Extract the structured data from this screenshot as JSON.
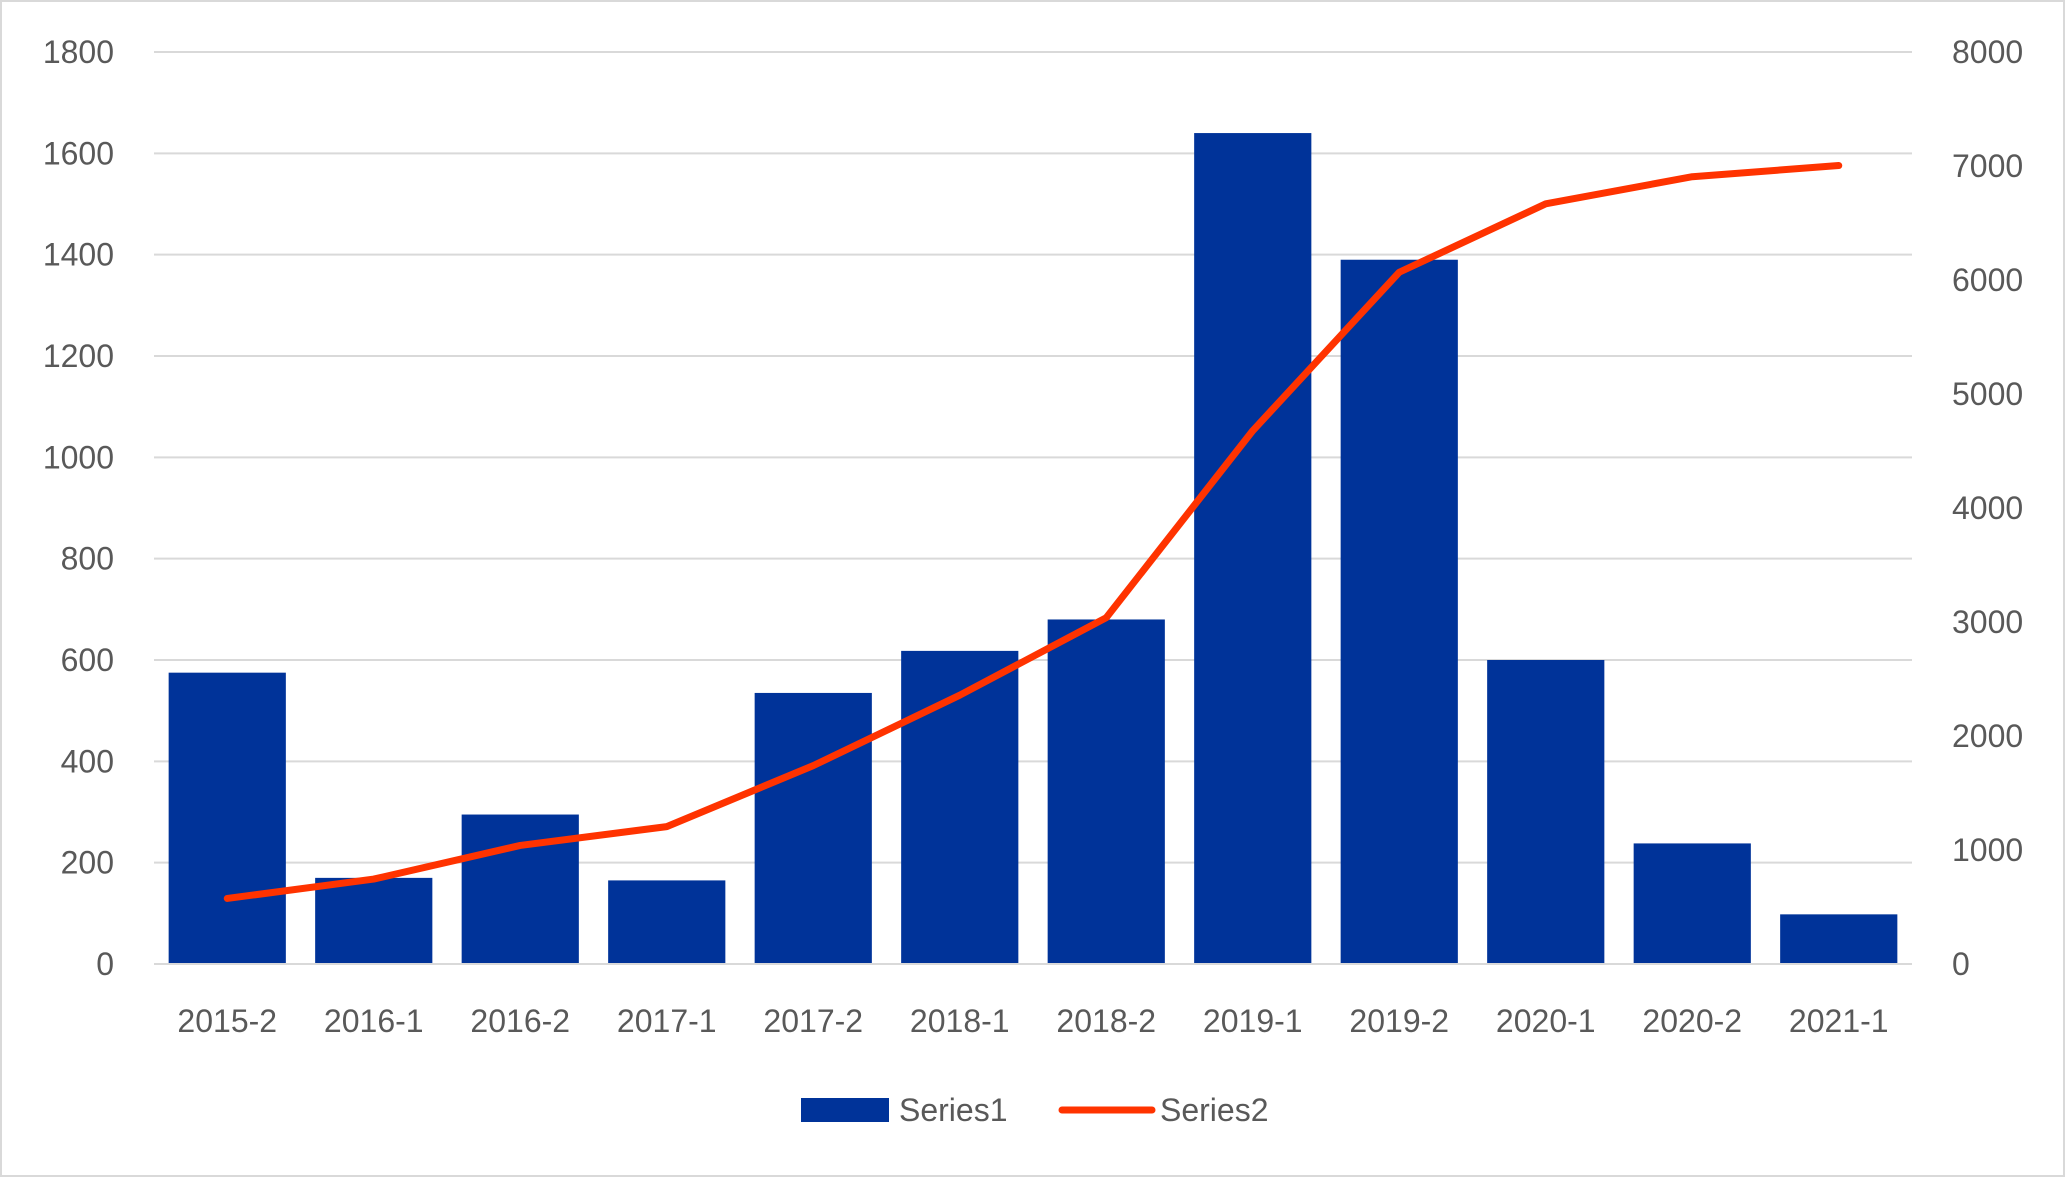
{
  "chart_data": {
    "type": "bar",
    "title": "",
    "xlabel": "",
    "ylabel": "",
    "categories": [
      "2015-2",
      "2016-1",
      "2016-2",
      "2017-1",
      "2017-2",
      "2018-1",
      "2018-2",
      "2019-1",
      "2019-2",
      "2020-1",
      "2020-2",
      "2021-1"
    ],
    "series": [
      {
        "name": "Series1",
        "type": "bar",
        "axis": "left",
        "color": "#003399",
        "values": [
          575,
          170,
          295,
          165,
          535,
          618,
          680,
          1640,
          1390,
          600,
          238,
          98
        ]
      },
      {
        "name": "Series2",
        "type": "line",
        "axis": "right",
        "color": "#ff3300",
        "values": [
          575,
          745,
          1040,
          1205,
          1740,
          2358,
          3038,
          4678,
          6068,
          6668,
          6906,
          7004
        ]
      }
    ],
    "ylim_left": [
      0,
      1800
    ],
    "ylim_right": [
      0,
      8000
    ],
    "yticks_left": [
      "0",
      "200",
      "400",
      "600",
      "800",
      "1000",
      "1200",
      "1400",
      "1600",
      "1800"
    ],
    "yticks_right": [
      "0",
      "1000",
      "2000",
      "3000",
      "4000",
      "5000",
      "6000",
      "7000",
      "8000"
    ],
    "grid": true,
    "legend": "bottom-center"
  }
}
